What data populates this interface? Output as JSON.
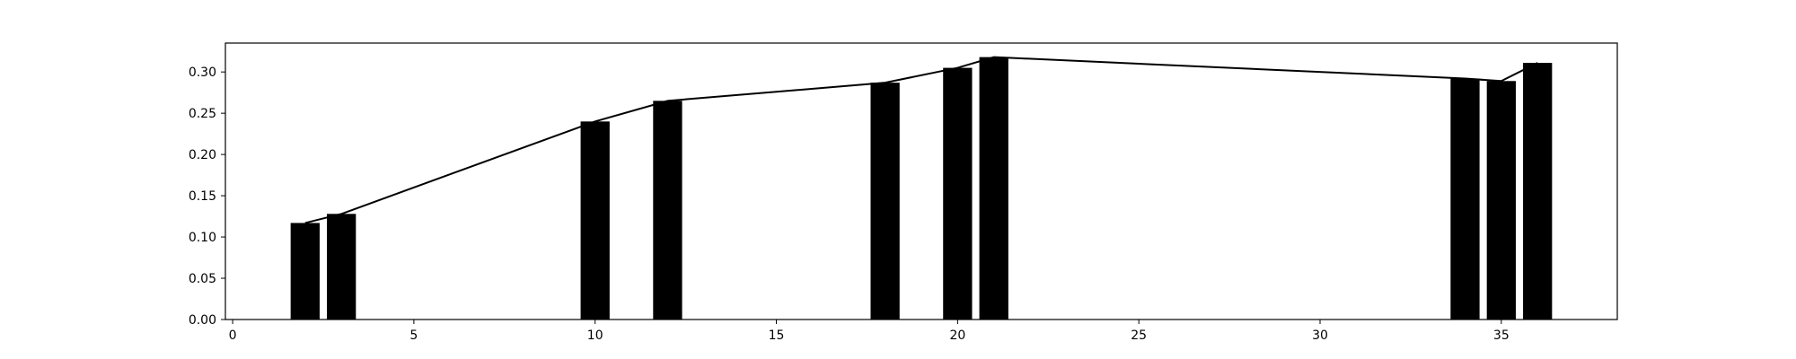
{
  "chart_data": {
    "type": "bar",
    "title": "",
    "xlabel": "",
    "ylabel": "",
    "xlim": [
      -0.2,
      38.2
    ],
    "ylim": [
      0,
      0.335
    ],
    "grid": false,
    "bar_width": 0.8,
    "bar_color": "#000000",
    "line_color": "#000000",
    "x": [
      2,
      3,
      10,
      12,
      18,
      20,
      21,
      34,
      35,
      36
    ],
    "values": [
      0.117,
      0.128,
      0.24,
      0.265,
      0.287,
      0.305,
      0.318,
      0.292,
      0.289,
      0.311
    ],
    "line": {
      "x": [
        2,
        3,
        10,
        12,
        18,
        20,
        21,
        34,
        35,
        36
      ],
      "y": [
        0.117,
        0.128,
        0.24,
        0.265,
        0.287,
        0.305,
        0.318,
        0.292,
        0.289,
        0.311
      ]
    },
    "xticks": [
      0,
      5,
      10,
      15,
      20,
      25,
      30,
      35
    ],
    "xtick_labels": [
      "0",
      "5",
      "10",
      "15",
      "20",
      "25",
      "30",
      "35"
    ],
    "yticks": [
      0,
      0.05,
      0.1,
      0.15,
      0.2,
      0.25,
      0.3
    ],
    "ytick_labels": [
      "0.00",
      "0.05",
      "0.10",
      "0.15",
      "0.20",
      "0.25",
      "0.30"
    ]
  }
}
